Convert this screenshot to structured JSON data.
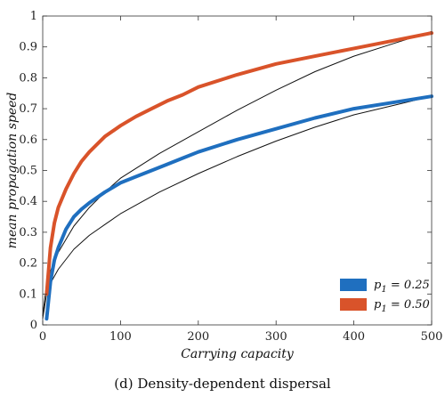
{
  "chart_data": {
    "type": "line",
    "xlabel": "Carrying capacity",
    "ylabel": "mean propagation speed",
    "caption": "(d) Density-dependent dispersal",
    "xlim": [
      0,
      500
    ],
    "ylim": [
      0,
      1
    ],
    "xticks": [
      0,
      100,
      200,
      300,
      400,
      500
    ],
    "yticks": [
      0,
      0.1,
      0.2,
      0.3,
      0.4,
      0.5,
      0.6,
      0.7,
      0.8,
      0.9,
      1
    ],
    "legend_position": "bottom-right",
    "series": [
      {
        "name": "p1 = 0.25",
        "legend_text": {
          "p": "p",
          "sub": "1",
          "rest": " = 0.25"
        },
        "color": "#1f6fbf",
        "x": [
          5,
          10,
          15,
          20,
          30,
          40,
          50,
          60,
          80,
          100,
          120,
          140,
          160,
          180,
          200,
          250,
          300,
          350,
          400,
          450,
          500
        ],
        "y": [
          0.02,
          0.14,
          0.21,
          0.25,
          0.31,
          0.35,
          0.375,
          0.395,
          0.43,
          0.46,
          0.48,
          0.5,
          0.52,
          0.54,
          0.56,
          0.6,
          0.635,
          0.67,
          0.7,
          0.72,
          0.74
        ]
      },
      {
        "name": "p1 = 0.50",
        "legend_text": {
          "p": "p",
          "sub": "1",
          "rest": " = 0.50"
        },
        "color": "#d9532a",
        "x": [
          5,
          10,
          15,
          20,
          30,
          40,
          50,
          60,
          80,
          100,
          120,
          140,
          160,
          180,
          200,
          250,
          300,
          350,
          400,
          450,
          500
        ],
        "y": [
          0.1,
          0.25,
          0.33,
          0.38,
          0.44,
          0.49,
          0.53,
          0.56,
          0.61,
          0.645,
          0.675,
          0.7,
          0.725,
          0.745,
          0.77,
          0.81,
          0.845,
          0.87,
          0.895,
          0.92,
          0.945
        ]
      },
      {
        "name": "",
        "color": "#111111",
        "x": [
          0,
          5,
          10,
          20,
          40,
          60,
          80,
          100,
          150,
          200,
          250,
          300,
          350,
          400,
          450,
          500
        ],
        "y": [
          0.03,
          0.135,
          0.175,
          0.235,
          0.32,
          0.38,
          0.43,
          0.475,
          0.555,
          0.625,
          0.695,
          0.76,
          0.82,
          0.87,
          0.91,
          0.95
        ]
      },
      {
        "name": "",
        "color": "#111111",
        "x": [
          0,
          5,
          10,
          20,
          40,
          60,
          80,
          100,
          150,
          200,
          250,
          300,
          350,
          400,
          450,
          500
        ],
        "y": [
          0.02,
          0.1,
          0.135,
          0.18,
          0.245,
          0.29,
          0.325,
          0.36,
          0.43,
          0.49,
          0.545,
          0.595,
          0.64,
          0.68,
          0.71,
          0.74
        ]
      }
    ]
  }
}
